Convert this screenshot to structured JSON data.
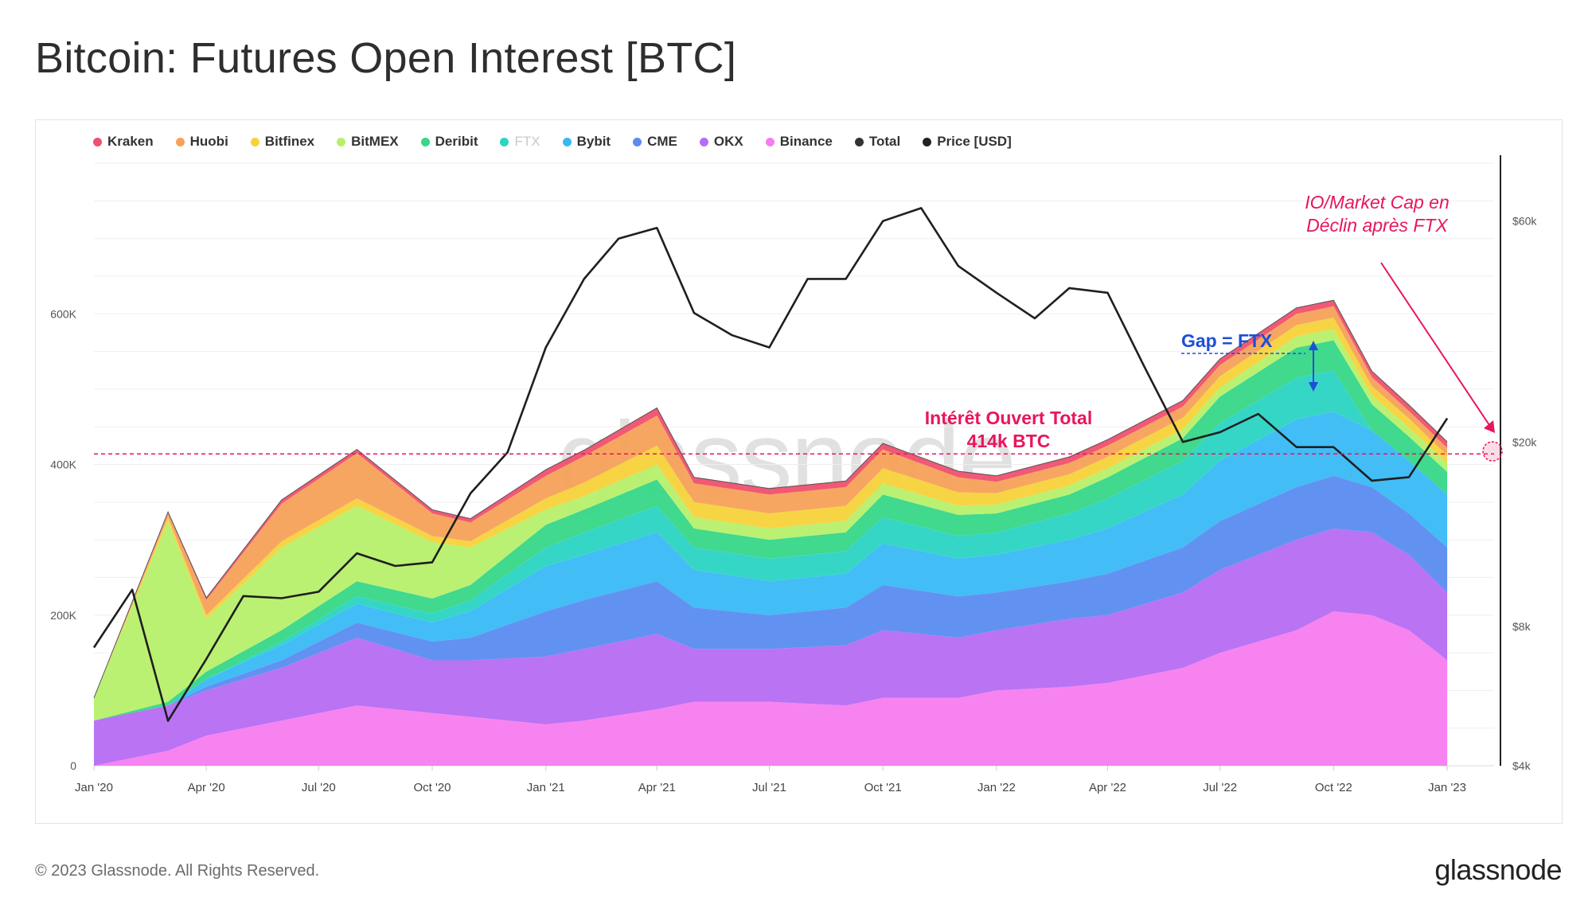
{
  "title": "Bitcoin: Futures Open Interest [BTC]",
  "footer": {
    "copyright": "© 2023 Glassnode. All Rights Reserved.",
    "brand": "glassnode"
  },
  "watermark": "glassnode",
  "legend": [
    {
      "label": "Kraken",
      "color": "#f0506e"
    },
    {
      "label": "Huobi",
      "color": "#f7a15a"
    },
    {
      "label": "Bitfinex",
      "color": "#f7d23a"
    },
    {
      "label": "BitMEX",
      "color": "#b6f06a"
    },
    {
      "label": "Deribit",
      "color": "#36d787"
    },
    {
      "label": "FTX",
      "color": "#2bd4c4"
    },
    {
      "label": "Bybit",
      "color": "#38b9f5"
    },
    {
      "label": "CME",
      "color": "#5a8cf0"
    },
    {
      "label": "OKX",
      "color": "#b56cf2"
    },
    {
      "label": "Binance",
      "color": "#f77cf0"
    },
    {
      "label": "Total",
      "color": "#333333"
    },
    {
      "label": "Price [USD]",
      "color": "#222222"
    }
  ],
  "annotations": {
    "total_oi_line1": "Intérêt Ouvert Total",
    "total_oi_line2": "414k BTC",
    "gap_label": "Gap = FTX",
    "decline_line1": "IO/Market Cap en",
    "decline_line2": "Déclin après FTX"
  },
  "chart_data": {
    "type": "area",
    "stacked": true,
    "x_tick_labels": [
      "Jan '20",
      "Apr '20",
      "Jul '20",
      "Oct '20",
      "Jan '21",
      "Apr '21",
      "Jul '21",
      "Oct '21",
      "Jan '22",
      "Apr '22",
      "Jul '22",
      "Oct '22",
      "Jan '23"
    ],
    "y_left_ticks": [
      "0",
      "200K",
      "400K",
      "600K"
    ],
    "y_left_range": [
      0,
      800000
    ],
    "y_right_ticks": [
      "$4k",
      "$8k",
      "$20k",
      "$60k"
    ],
    "y_right_scale": "log",
    "y_right_range": [
      4000,
      80000
    ],
    "reference_line_btc": 414000,
    "x": [
      "2020-01",
      "2020-03",
      "2020-04",
      "2020-06",
      "2020-08",
      "2020-10",
      "2020-11",
      "2021-01",
      "2021-02",
      "2021-04",
      "2021-05",
      "2021-07",
      "2021-09",
      "2021-10",
      "2021-12",
      "2022-01",
      "2022-03",
      "2022-04",
      "2022-06",
      "2022-07",
      "2022-09",
      "2022-10",
      "2022-11",
      "2022-12",
      "2023-01"
    ],
    "series": [
      {
        "name": "Binance",
        "values": [
          0,
          20000,
          40000,
          60000,
          80000,
          70000,
          65000,
          55000,
          60000,
          75000,
          85000,
          85000,
          80000,
          90000,
          90000,
          100000,
          105000,
          110000,
          130000,
          150000,
          180000,
          205000,
          200000,
          180000,
          140000
        ]
      },
      {
        "name": "OKX",
        "values": [
          60000,
          60000,
          60000,
          70000,
          90000,
          70000,
          75000,
          90000,
          95000,
          100000,
          70000,
          70000,
          80000,
          90000,
          80000,
          80000,
          90000,
          90000,
          100000,
          110000,
          120000,
          110000,
          110000,
          100000,
          90000
        ]
      },
      {
        "name": "CME",
        "values": [
          0,
          0,
          5000,
          10000,
          20000,
          25000,
          30000,
          60000,
          65000,
          70000,
          55000,
          45000,
          50000,
          60000,
          55000,
          50000,
          50000,
          55000,
          60000,
          65000,
          70000,
          70000,
          60000,
          55000,
          60000
        ]
      },
      {
        "name": "Bybit",
        "values": [
          0,
          0,
          10000,
          20000,
          25000,
          25000,
          35000,
          60000,
          60000,
          65000,
          50000,
          45000,
          45000,
          55000,
          50000,
          50000,
          55000,
          60000,
          70000,
          80000,
          90000,
          85000,
          75000,
          70000,
          70000
        ]
      },
      {
        "name": "FTX",
        "values": [
          0,
          0,
          0,
          5000,
          10000,
          12000,
          15000,
          25000,
          30000,
          35000,
          30000,
          30000,
          30000,
          35000,
          30000,
          30000,
          35000,
          40000,
          45000,
          50000,
          55000,
          55000,
          0,
          0,
          0
        ]
      },
      {
        "name": "Deribit",
        "values": [
          0,
          5000,
          10000,
          15000,
          20000,
          20000,
          20000,
          30000,
          30000,
          35000,
          25000,
          25000,
          25000,
          30000,
          28000,
          25000,
          25000,
          28000,
          30000,
          35000,
          40000,
          40000,
          35000,
          32000,
          30000
        ]
      },
      {
        "name": "BitMEX",
        "values": [
          30000,
          240000,
          70000,
          110000,
          100000,
          75000,
          50000,
          20000,
          18000,
          20000,
          15000,
          15000,
          15000,
          15000,
          12000,
          12000,
          12000,
          12000,
          12000,
          12000,
          15000,
          15000,
          12000,
          12000,
          12000
        ]
      },
      {
        "name": "Bitfinex",
        "values": [
          0,
          5000,
          5000,
          8000,
          10000,
          8000,
          8000,
          15000,
          18000,
          25000,
          20000,
          20000,
          20000,
          20000,
          18000,
          15000,
          15000,
          15000,
          15000,
          15000,
          15000,
          15000,
          12000,
          12000,
          10000
        ]
      },
      {
        "name": "Huobi",
        "values": [
          0,
          5000,
          20000,
          50000,
          60000,
          30000,
          25000,
          30000,
          35000,
          40000,
          25000,
          25000,
          25000,
          25000,
          20000,
          15000,
          15000,
          15000,
          15000,
          15000,
          15000,
          15000,
          12000,
          10000,
          10000
        ]
      },
      {
        "name": "Kraken",
        "values": [
          0,
          2000,
          3000,
          5000,
          5000,
          5000,
          5000,
          8000,
          8000,
          10000,
          8000,
          8000,
          8000,
          8000,
          8000,
          8000,
          8000,
          8000,
          8000,
          8000,
          8000,
          8000,
          8000,
          8000,
          8000
        ]
      }
    ],
    "price_usd": {
      "x": [
        "2020-01",
        "2020-02",
        "2020-03",
        "2020-04",
        "2020-05",
        "2020-06",
        "2020-07",
        "2020-08",
        "2020-09",
        "2020-10",
        "2020-11",
        "2020-12",
        "2021-01",
        "2021-02",
        "2021-03",
        "2021-04",
        "2021-05",
        "2021-06",
        "2021-07",
        "2021-08",
        "2021-09",
        "2021-10",
        "2021-11",
        "2021-12",
        "2022-01",
        "2022-02",
        "2022-03",
        "2022-04",
        "2022-05",
        "2022-06",
        "2022-07",
        "2022-08",
        "2022-09",
        "2022-10",
        "2022-11",
        "2022-12",
        "2023-01"
      ],
      "values": [
        7200,
        9600,
        5000,
        6800,
        9300,
        9200,
        9500,
        11500,
        10800,
        11000,
        15500,
        19000,
        32000,
        45000,
        55000,
        58000,
        38000,
        34000,
        32000,
        45000,
        45000,
        60000,
        64000,
        48000,
        42000,
        37000,
        43000,
        42000,
        29000,
        20000,
        21000,
        23000,
        19500,
        19500,
        16500,
        16800,
        22500
      ]
    }
  }
}
